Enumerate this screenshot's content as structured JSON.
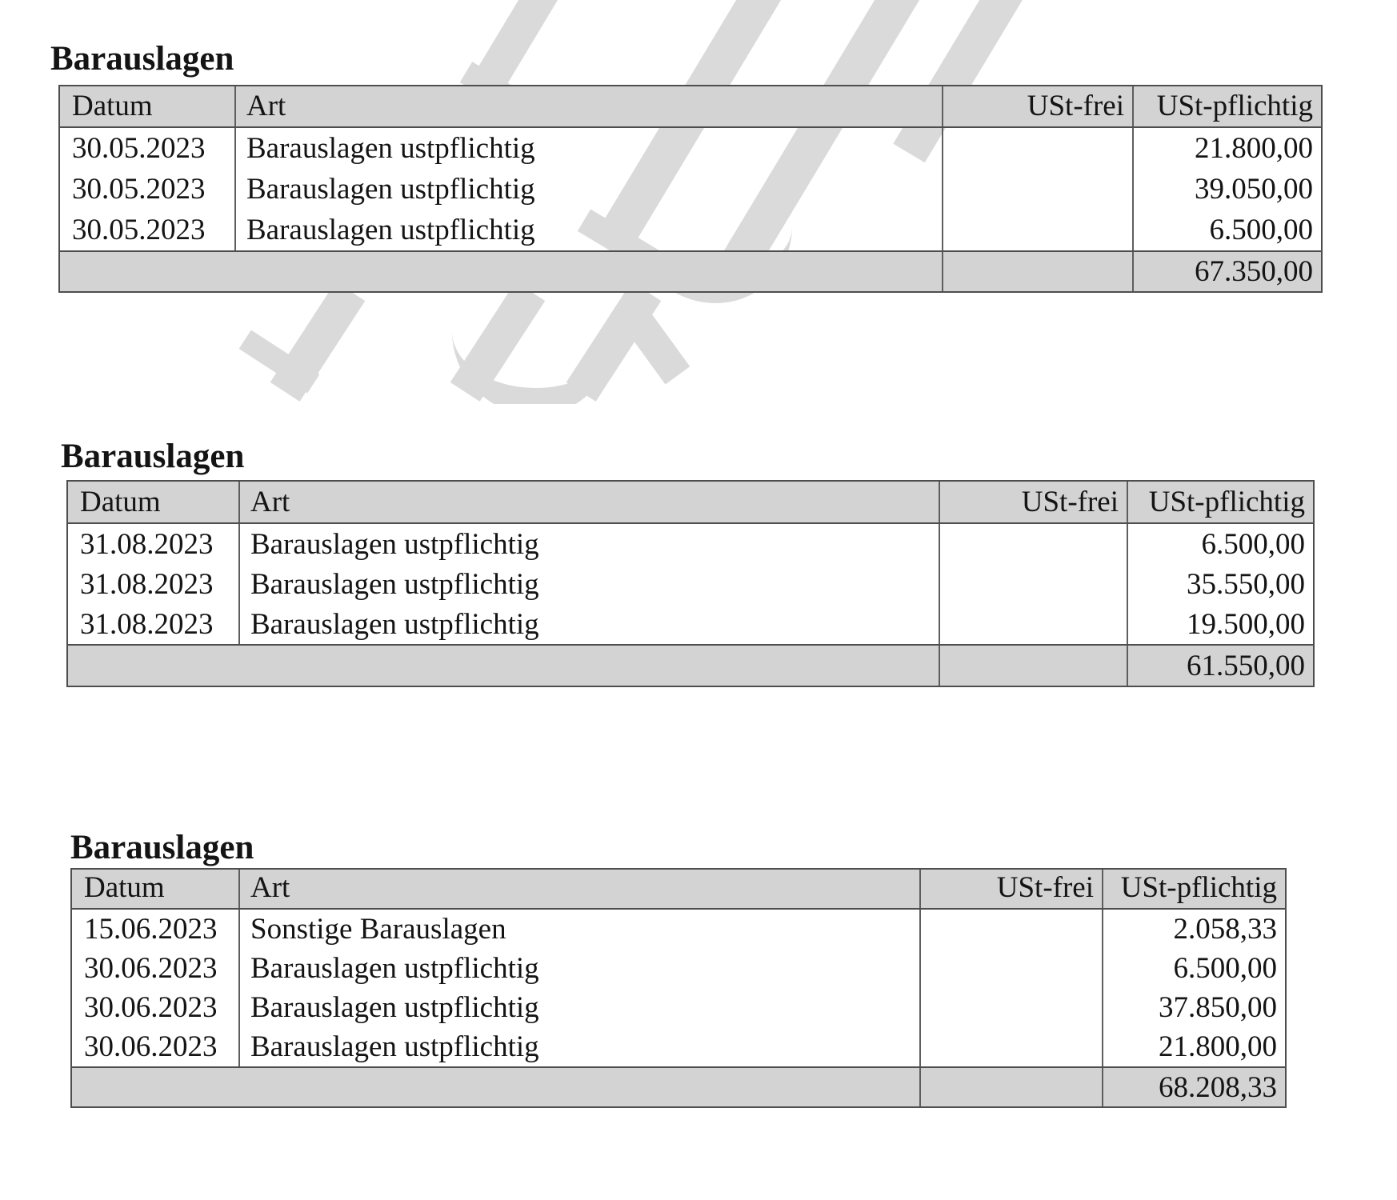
{
  "page": {
    "background": "#ffffff",
    "text_color": "#141414",
    "header_bg": "#d3d3d3",
    "total_bg": "#d3d3d3",
    "border_dark": "#4e4e4e",
    "border_mid": "#5e5e5e",
    "watermark_color": "#dadada"
  },
  "tables": [
    {
      "title": "Barauslagen",
      "columns": [
        "Datum",
        "Art",
        "USt-frei",
        "USt-pflichtig"
      ],
      "rows": [
        {
          "datum": "30.05.2023",
          "art": "Barauslagen ustpflichtig",
          "ust_frei": "",
          "ust_pflichtig": "21.800,00"
        },
        {
          "datum": "30.05.2023",
          "art": "Barauslagen ustpflichtig",
          "ust_frei": "",
          "ust_pflichtig": "39.050,00"
        },
        {
          "datum": "30.05.2023",
          "art": "Barauslagen ustpflichtig",
          "ust_frei": "",
          "ust_pflichtig": "6.500,00"
        }
      ],
      "total": {
        "ust_frei": "",
        "ust_pflichtig": "67.350,00"
      }
    },
    {
      "title": "Barauslagen",
      "columns": [
        "Datum",
        "Art",
        "USt-frei",
        "USt-pflichtig"
      ],
      "rows": [
        {
          "datum": "31.08.2023",
          "art": "Barauslagen ustpflichtig",
          "ust_frei": "",
          "ust_pflichtig": "6.500,00"
        },
        {
          "datum": "31.08.2023",
          "art": "Barauslagen ustpflichtig",
          "ust_frei": "",
          "ust_pflichtig": "35.550,00"
        },
        {
          "datum": "31.08.2023",
          "art": "Barauslagen ustpflichtig",
          "ust_frei": "",
          "ust_pflichtig": "19.500,00"
        }
      ],
      "total": {
        "ust_frei": "",
        "ust_pflichtig": "61.550,00"
      }
    },
    {
      "title": "Barauslagen",
      "columns": [
        "Datum",
        "Art",
        "USt-frei",
        "USt-pflichtig"
      ],
      "rows": [
        {
          "datum": "15.06.2023",
          "art": "Sonstige Barauslagen",
          "ust_frei": "",
          "ust_pflichtig": "2.058,33"
        },
        {
          "datum": "30.06.2023",
          "art": "Barauslagen ustpflichtig",
          "ust_frei": "",
          "ust_pflichtig": "6.500,00"
        },
        {
          "datum": "30.06.2023",
          "art": "Barauslagen ustpflichtig",
          "ust_frei": "",
          "ust_pflichtig": "37.850,00"
        },
        {
          "datum": "30.06.2023",
          "art": "Barauslagen ustpflichtig",
          "ust_frei": "",
          "ust_pflichtig": "21.800,00"
        }
      ],
      "total": {
        "ust_frei": "",
        "ust_pflichtig": "68.208,33"
      }
    }
  ]
}
